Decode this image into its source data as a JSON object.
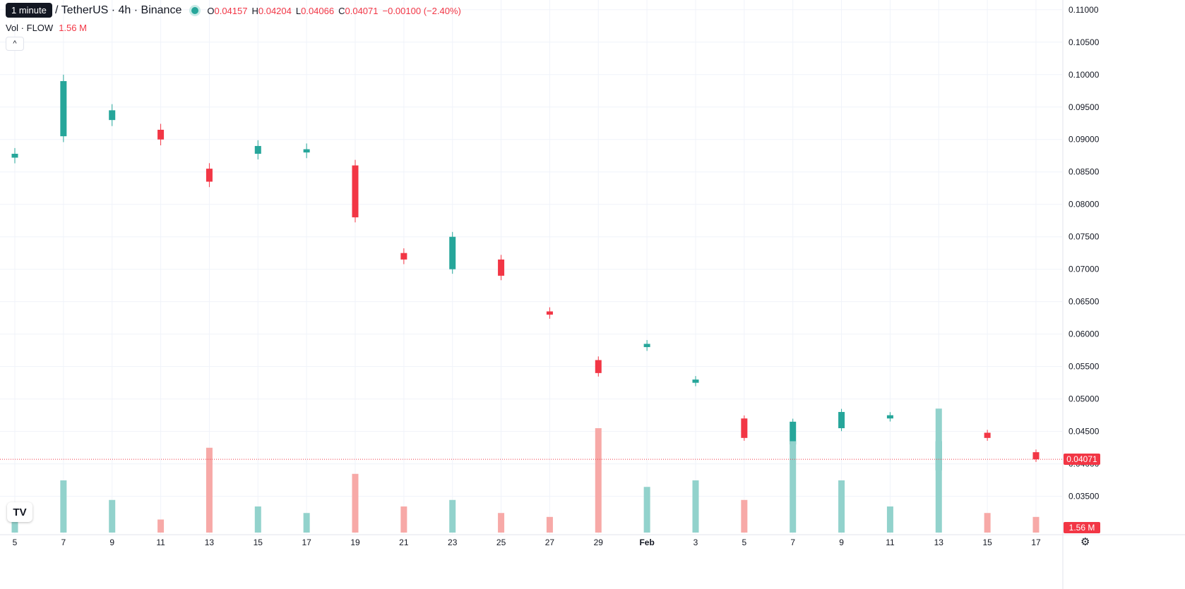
{
  "tooltip": "1 minute",
  "legend": {
    "symbol": "/ TetherUS · 4h · Binance",
    "open_key": "O",
    "open": "0.04157",
    "high_key": "H",
    "high": "0.04204",
    "low_key": "L",
    "low": "0.04066",
    "close_key": "C",
    "close": "0.04071",
    "change": "−0.00100 (−2.40%)",
    "volume_label": "Vol · FLOW",
    "volume_value": "1.56 M"
  },
  "collapse_icon": "chevron-up-icon",
  "price_tag": "0.04071",
  "volume_tag": "1.56 M",
  "colors": {
    "up": "#26a69a",
    "down": "#f23645",
    "up_vol": "#92d2cc",
    "down_vol": "#f7a9a7",
    "grid": "#f0f3fa"
  },
  "chart_data": {
    "type": "candlestick",
    "y_ticks": [
      "0.11000",
      "0.10500",
      "0.10000",
      "0.09500",
      "0.09000",
      "0.08500",
      "0.08000",
      "0.07500",
      "0.07000",
      "0.06500",
      "0.06000",
      "0.05500",
      "0.05000",
      "0.04500",
      "0.04000",
      "0.03500"
    ],
    "ylim": [
      0.0305,
      0.1115
    ],
    "x_ticks": [
      "5",
      "7",
      "9",
      "11",
      "13",
      "15",
      "17",
      "19",
      "21",
      "23",
      "25",
      "27",
      "29",
      "Feb",
      "3",
      "5",
      "7",
      "9",
      "11",
      "13",
      "15",
      "17"
    ],
    "last_price": 0.04071,
    "series": [
      {
        "day": "5",
        "o": 0.0872,
        "c": 0.0878,
        "v": 0.15
      },
      {
        "day": "7",
        "o": 0.0905,
        "c": 0.099,
        "v": 0.4
      },
      {
        "day": "9",
        "o": 0.093,
        "c": 0.0945,
        "v": 0.25
      },
      {
        "day": "11",
        "o": 0.0915,
        "c": 0.09,
        "v": 0.1
      },
      {
        "day": "13",
        "o": 0.0855,
        "c": 0.0835,
        "v": 0.65
      },
      {
        "day": "15",
        "o": 0.0878,
        "c": 0.089,
        "v": 0.2
      },
      {
        "day": "17",
        "o": 0.088,
        "c": 0.0885,
        "v": 0.15
      },
      {
        "day": "19",
        "o": 0.086,
        "c": 0.078,
        "v": 0.45
      },
      {
        "day": "21",
        "o": 0.0725,
        "c": 0.0715,
        "v": 0.2
      },
      {
        "day": "23",
        "o": 0.07,
        "c": 0.075,
        "v": 0.25
      },
      {
        "day": "25",
        "o": 0.0715,
        "c": 0.069,
        "v": 0.15
      },
      {
        "day": "27",
        "o": 0.0635,
        "c": 0.063,
        "v": 0.12
      },
      {
        "day": "29",
        "o": 0.056,
        "c": 0.054,
        "v": 0.8
      },
      {
        "day": "Feb",
        "o": 0.058,
        "c": 0.0585,
        "v": 0.35
      },
      {
        "day": "3",
        "o": 0.0525,
        "c": 0.053,
        "v": 0.4
      },
      {
        "day": "5",
        "o": 0.047,
        "c": 0.044,
        "v": 0.25
      },
      {
        "day": "7",
        "o": 0.043,
        "c": 0.0465,
        "v": 0.7
      },
      {
        "day": "9",
        "o": 0.0455,
        "c": 0.048,
        "v": 0.4
      },
      {
        "day": "11",
        "o": 0.047,
        "c": 0.0475,
        "v": 0.2
      },
      {
        "day": "13",
        "o": 0.039,
        "c": 0.0435,
        "v": 0.95
      },
      {
        "day": "15",
        "o": 0.0448,
        "c": 0.044,
        "v": 0.15
      },
      {
        "day": "17",
        "o": 0.0418,
        "c": 0.0407,
        "v": 0.12
      }
    ]
  }
}
